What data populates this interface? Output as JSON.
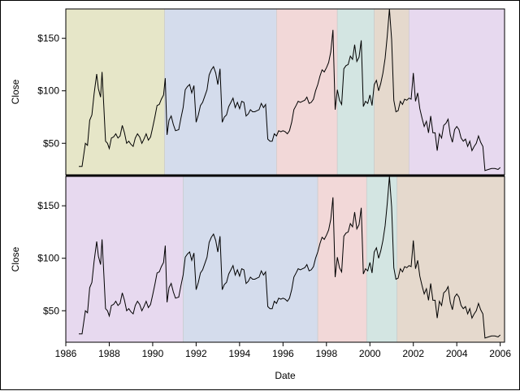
{
  "chart_data": {
    "type": "line",
    "xlabel": "Date",
    "xlim": [
      1986.0,
      2006.2
    ],
    "x_ticks": [
      1986,
      1988,
      1990,
      1992,
      1994,
      1996,
      1998,
      2000,
      2002,
      2004,
      2006
    ],
    "x_tick_labels": [
      "1986",
      "1988",
      "1990",
      "1992",
      "1994",
      "1996",
      "1998",
      "2000",
      "2002",
      "2004",
      "2006"
    ],
    "grid": false,
    "legend": "none",
    "series": [
      {
        "points": [
          [
            1986.6,
            28
          ],
          [
            1986.75,
            28
          ],
          [
            1986.9,
            50
          ],
          [
            1987.0,
            48
          ],
          [
            1987.1,
            72
          ],
          [
            1987.2,
            77
          ],
          [
            1987.3,
            97
          ],
          [
            1987.42,
            116
          ],
          [
            1987.5,
            102
          ],
          [
            1987.6,
            94
          ],
          [
            1987.67,
            118
          ],
          [
            1987.75,
            85
          ],
          [
            1987.83,
            52
          ],
          [
            1987.92,
            50
          ],
          [
            1988.0,
            45
          ],
          [
            1988.1,
            55
          ],
          [
            1988.2,
            56
          ],
          [
            1988.3,
            59
          ],
          [
            1988.4,
            55
          ],
          [
            1988.5,
            57
          ],
          [
            1988.6,
            67
          ],
          [
            1988.7,
            60
          ],
          [
            1988.8,
            50
          ],
          [
            1988.9,
            52
          ],
          [
            1989.0,
            49
          ],
          [
            1989.1,
            47
          ],
          [
            1989.2,
            55
          ],
          [
            1989.3,
            59
          ],
          [
            1989.4,
            56
          ],
          [
            1989.5,
            50
          ],
          [
            1989.6,
            54
          ],
          [
            1989.7,
            59
          ],
          [
            1989.8,
            53
          ],
          [
            1989.9,
            56
          ],
          [
            1990.0,
            65
          ],
          [
            1990.1,
            75
          ],
          [
            1990.2,
            86
          ],
          [
            1990.3,
            87
          ],
          [
            1990.4,
            92
          ],
          [
            1990.5,
            96
          ],
          [
            1990.58,
            112
          ],
          [
            1990.66,
            58
          ],
          [
            1990.75,
            72
          ],
          [
            1990.85,
            76
          ],
          [
            1990.95,
            68
          ],
          [
            1991.05,
            62
          ],
          [
            1991.2,
            63
          ],
          [
            1991.3,
            74
          ],
          [
            1991.4,
            84
          ],
          [
            1991.5,
            101
          ],
          [
            1991.6,
            104
          ],
          [
            1991.7,
            106
          ],
          [
            1991.8,
            98
          ],
          [
            1991.9,
            105
          ],
          [
            1992.0,
            70
          ],
          [
            1992.1,
            77
          ],
          [
            1992.2,
            86
          ],
          [
            1992.3,
            89
          ],
          [
            1992.4,
            95
          ],
          [
            1992.5,
            101
          ],
          [
            1992.6,
            115
          ],
          [
            1992.7,
            120
          ],
          [
            1992.8,
            123
          ],
          [
            1992.9,
            117
          ],
          [
            1993.0,
            106
          ],
          [
            1993.1,
            121
          ],
          [
            1993.2,
            70
          ],
          [
            1993.3,
            75
          ],
          [
            1993.4,
            77
          ],
          [
            1993.5,
            85
          ],
          [
            1993.6,
            89
          ],
          [
            1993.7,
            93
          ],
          [
            1993.8,
            84
          ],
          [
            1993.9,
            89
          ],
          [
            1994.0,
            83
          ],
          [
            1994.1,
            90
          ],
          [
            1994.2,
            89
          ],
          [
            1994.3,
            76
          ],
          [
            1994.4,
            78
          ],
          [
            1994.5,
            82
          ],
          [
            1994.6,
            80
          ],
          [
            1994.7,
            80
          ],
          [
            1994.8,
            81
          ],
          [
            1994.9,
            82
          ],
          [
            1995.0,
            88
          ],
          [
            1995.1,
            84
          ],
          [
            1995.2,
            87
          ],
          [
            1995.3,
            54
          ],
          [
            1995.4,
            52
          ],
          [
            1995.5,
            52
          ],
          [
            1995.6,
            59
          ],
          [
            1995.7,
            57
          ],
          [
            1995.8,
            62
          ],
          [
            1995.9,
            61
          ],
          [
            1996.0,
            62
          ],
          [
            1996.1,
            61
          ],
          [
            1996.2,
            59
          ],
          [
            1996.3,
            62
          ],
          [
            1996.4,
            70
          ],
          [
            1996.5,
            82
          ],
          [
            1996.6,
            86
          ],
          [
            1996.7,
            90
          ],
          [
            1996.8,
            89
          ],
          [
            1996.9,
            90
          ],
          [
            1997.0,
            91
          ],
          [
            1997.1,
            94
          ],
          [
            1997.2,
            88
          ],
          [
            1997.3,
            89
          ],
          [
            1997.4,
            92
          ],
          [
            1997.5,
            100
          ],
          [
            1997.6,
            106
          ],
          [
            1997.7,
            114
          ],
          [
            1997.8,
            120
          ],
          [
            1997.9,
            118
          ],
          [
            1998.0,
            122
          ],
          [
            1998.1,
            127
          ],
          [
            1998.2,
            137
          ],
          [
            1998.3,
            158
          ],
          [
            1998.4,
            82
          ],
          [
            1998.5,
            101
          ],
          [
            1998.6,
            91
          ],
          [
            1998.7,
            87
          ],
          [
            1998.8,
            121
          ],
          [
            1998.9,
            124
          ],
          [
            1999.0,
            125
          ],
          [
            1999.1,
            133
          ],
          [
            1999.2,
            130
          ],
          [
            1999.3,
            144
          ],
          [
            1999.4,
            128
          ],
          [
            1999.5,
            132
          ],
          [
            1999.6,
            148
          ],
          [
            1999.7,
            85
          ],
          [
            1999.8,
            90
          ],
          [
            1999.9,
            88
          ],
          [
            2000.0,
            96
          ],
          [
            2000.1,
            86
          ],
          [
            2000.2,
            106
          ],
          [
            2000.3,
            110
          ],
          [
            2000.4,
            100
          ],
          [
            2000.5,
            107
          ],
          [
            2000.6,
            117
          ],
          [
            2000.7,
            131
          ],
          [
            2000.8,
            152
          ],
          [
            2000.9,
            178
          ],
          [
            2001.0,
            149
          ],
          [
            2001.1,
            91
          ],
          [
            2001.2,
            80
          ],
          [
            2001.3,
            81
          ],
          [
            2001.4,
            90
          ],
          [
            2001.5,
            87
          ],
          [
            2001.6,
            92
          ],
          [
            2001.7,
            91
          ],
          [
            2001.8,
            93
          ],
          [
            2001.9,
            92
          ],
          [
            2002.0,
            117
          ],
          [
            2002.1,
            90
          ],
          [
            2002.2,
            98
          ],
          [
            2002.3,
            83
          ],
          [
            2002.4,
            74
          ],
          [
            2002.5,
            66
          ],
          [
            2002.6,
            71
          ],
          [
            2002.7,
            60
          ],
          [
            2002.8,
            76
          ],
          [
            2002.9,
            60
          ],
          [
            2003.0,
            60
          ],
          [
            2003.1,
            43
          ],
          [
            2003.2,
            59
          ],
          [
            2003.3,
            55
          ],
          [
            2003.4,
            67
          ],
          [
            2003.5,
            69
          ],
          [
            2003.6,
            73
          ],
          [
            2003.7,
            58
          ],
          [
            2003.8,
            51
          ],
          [
            2003.9,
            63
          ],
          [
            2004.0,
            66
          ],
          [
            2004.1,
            63
          ],
          [
            2004.2,
            55
          ],
          [
            2004.3,
            52
          ],
          [
            2004.4,
            54
          ],
          [
            2004.5,
            47
          ],
          [
            2004.6,
            52
          ],
          [
            2004.7,
            43
          ],
          [
            2004.8,
            47
          ],
          [
            2004.9,
            50
          ],
          [
            2005.0,
            57
          ],
          [
            2005.1,
            51
          ],
          [
            2005.2,
            47
          ],
          [
            2005.3,
            24
          ],
          [
            2005.45,
            25
          ],
          [
            2005.6,
            26
          ],
          [
            2005.75,
            26
          ],
          [
            2005.9,
            25
          ],
          [
            2006.0,
            27
          ]
        ]
      }
    ],
    "panels": [
      {
        "ylabel": "Close",
        "ylim": [
          20,
          178
        ],
        "y_ticks": [
          50,
          100,
          150
        ],
        "y_tick_labels": [
          "$50",
          "$100",
          "$150"
        ],
        "bands": [
          {
            "start": 1986.0,
            "end": 1990.55,
            "color": "#e6e6c8"
          },
          {
            "start": 1990.55,
            "end": 1995.7,
            "color": "#d4dcec"
          },
          {
            "start": 1995.7,
            "end": 1998.5,
            "color": "#f2d8d8"
          },
          {
            "start": 1998.5,
            "end": 2000.2,
            "color": "#d3e5e2"
          },
          {
            "start": 2000.2,
            "end": 2001.8,
            "color": "#e5d9cd"
          },
          {
            "start": 2001.8,
            "end": 2006.2,
            "color": "#e7d9ef"
          }
        ]
      },
      {
        "ylabel": "Close",
        "ylim": [
          20,
          178
        ],
        "y_ticks": [
          50,
          100,
          150
        ],
        "y_tick_labels": [
          "$50",
          "$100",
          "$150"
        ],
        "bands": [
          {
            "start": 1986.0,
            "end": 1991.4,
            "color": "#e7d9ef"
          },
          {
            "start": 1991.4,
            "end": 1997.6,
            "color": "#d4dcec"
          },
          {
            "start": 1997.6,
            "end": 1999.85,
            "color": "#f2d8d8"
          },
          {
            "start": 1999.85,
            "end": 2001.25,
            "color": "#d3e5e2"
          },
          {
            "start": 2001.25,
            "end": 2006.2,
            "color": "#e5d9cd"
          }
        ]
      }
    ]
  }
}
